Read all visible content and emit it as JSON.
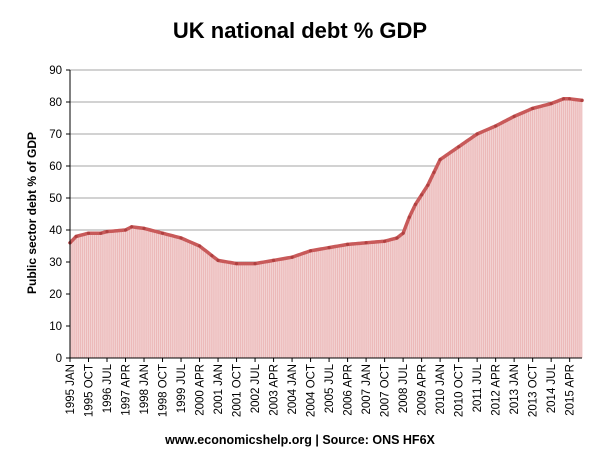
{
  "chart_data": {
    "type": "area",
    "title": "UK national debt % GDP",
    "source": "www.economicshelp.org | Source: ONS HF6X",
    "ylabel": "Public sector debt % of GDP",
    "xlabel": "",
    "ylim": [
      0,
      90
    ],
    "yticks": [
      0,
      10,
      20,
      30,
      40,
      50,
      60,
      70,
      80,
      90
    ],
    "grid": "horizontal",
    "legend": "none",
    "colors": {
      "line": "#c85a5a",
      "fill": "#f2d2d2",
      "grid": "#888888"
    },
    "x_tick_labels": [
      "1995 JAN",
      "1995 OCT",
      "1996 JUL",
      "1997 APR",
      "1998 JAN",
      "1998 OCT",
      "1999 JUL",
      "2000 APR",
      "2001 JAN",
      "2001 OCT",
      "2002 JUL",
      "2003 APR",
      "2004 JAN",
      "2004 OCT",
      "2005 JUL",
      "2006 APR",
      "2007 JAN",
      "2007 OCT",
      "2008 JUL",
      "2009 APR",
      "2010 JAN",
      "2010 OCT",
      "2011 JUL",
      "2012 APR",
      "2013 JAN",
      "2013 OCT",
      "2014 JUL",
      "2015 APR"
    ],
    "x_range": [
      "1995 JAN",
      "2015 OCT"
    ],
    "points": [
      {
        "x": "1995 JAN",
        "y": 36
      },
      {
        "x": "1995 APR",
        "y": 38
      },
      {
        "x": "1995 OCT",
        "y": 39
      },
      {
        "x": "1996 APR",
        "y": 39
      },
      {
        "x": "1996 JUL",
        "y": 39.5
      },
      {
        "x": "1997 APR",
        "y": 40
      },
      {
        "x": "1997 JUL",
        "y": 41
      },
      {
        "x": "1998 JAN",
        "y": 40.5
      },
      {
        "x": "1998 OCT",
        "y": 39
      },
      {
        "x": "1999 JUL",
        "y": 37.5
      },
      {
        "x": "2000 APR",
        "y": 35
      },
      {
        "x": "2000 OCT",
        "y": 32
      },
      {
        "x": "2001 JAN",
        "y": 30.5
      },
      {
        "x": "2001 OCT",
        "y": 29.5
      },
      {
        "x": "2002 JUL",
        "y": 29.5
      },
      {
        "x": "2003 APR",
        "y": 30.5
      },
      {
        "x": "2004 JAN",
        "y": 31.5
      },
      {
        "x": "2004 OCT",
        "y": 33.5
      },
      {
        "x": "2005 JUL",
        "y": 34.5
      },
      {
        "x": "2006 APR",
        "y": 35.5
      },
      {
        "x": "2007 JAN",
        "y": 36
      },
      {
        "x": "2007 OCT",
        "y": 36.5
      },
      {
        "x": "2008 APR",
        "y": 37.5
      },
      {
        "x": "2008 JUL",
        "y": 39
      },
      {
        "x": "2008 OCT",
        "y": 44
      },
      {
        "x": "2009 JAN",
        "y": 48
      },
      {
        "x": "2009 APR",
        "y": 51
      },
      {
        "x": "2009 JUL",
        "y": 54
      },
      {
        "x": "2009 OCT",
        "y": 58
      },
      {
        "x": "2010 JAN",
        "y": 62
      },
      {
        "x": "2010 OCT",
        "y": 66
      },
      {
        "x": "2011 JUL",
        "y": 70
      },
      {
        "x": "2012 APR",
        "y": 72.5
      },
      {
        "x": "2013 JAN",
        "y": 75.5
      },
      {
        "x": "2013 OCT",
        "y": 78
      },
      {
        "x": "2014 JUL",
        "y": 79.5
      },
      {
        "x": "2015 JAN",
        "y": 81
      },
      {
        "x": "2015 APR",
        "y": 81
      },
      {
        "x": "2015 OCT",
        "y": 80.5
      }
    ]
  }
}
